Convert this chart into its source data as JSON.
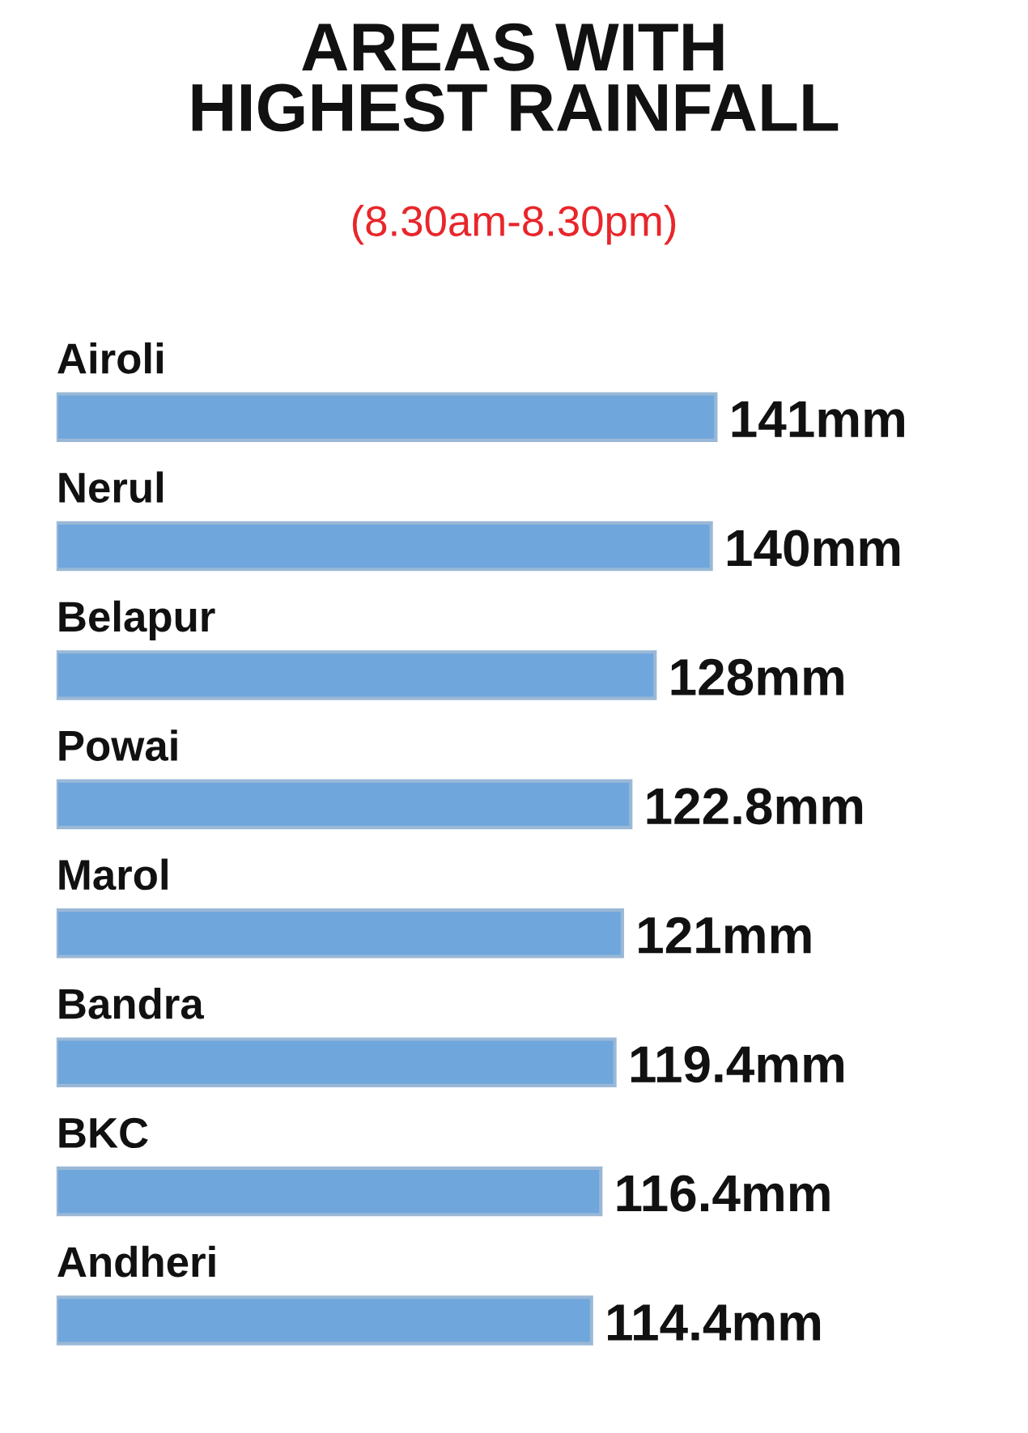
{
  "chart_data": {
    "type": "bar",
    "orientation": "horizontal",
    "title": "AREAS WITH\nHIGHEST RAINFALL",
    "subtitle": "(8.30am-8.30pm)",
    "categories": [
      "Airoli",
      "Nerul",
      "Belapur",
      "Powai",
      "Marol",
      "Bandra",
      "BKC",
      "Andheri"
    ],
    "values": [
      141,
      140,
      128,
      122.8,
      121,
      119.4,
      116.4,
      114.4
    ],
    "value_labels": [
      "141mm",
      "140mm",
      "128mm",
      "122.8mm",
      "121mm",
      "119.4mm",
      "116.4mm",
      "114.4mm"
    ],
    "color": "#6fa6dc"
  }
}
